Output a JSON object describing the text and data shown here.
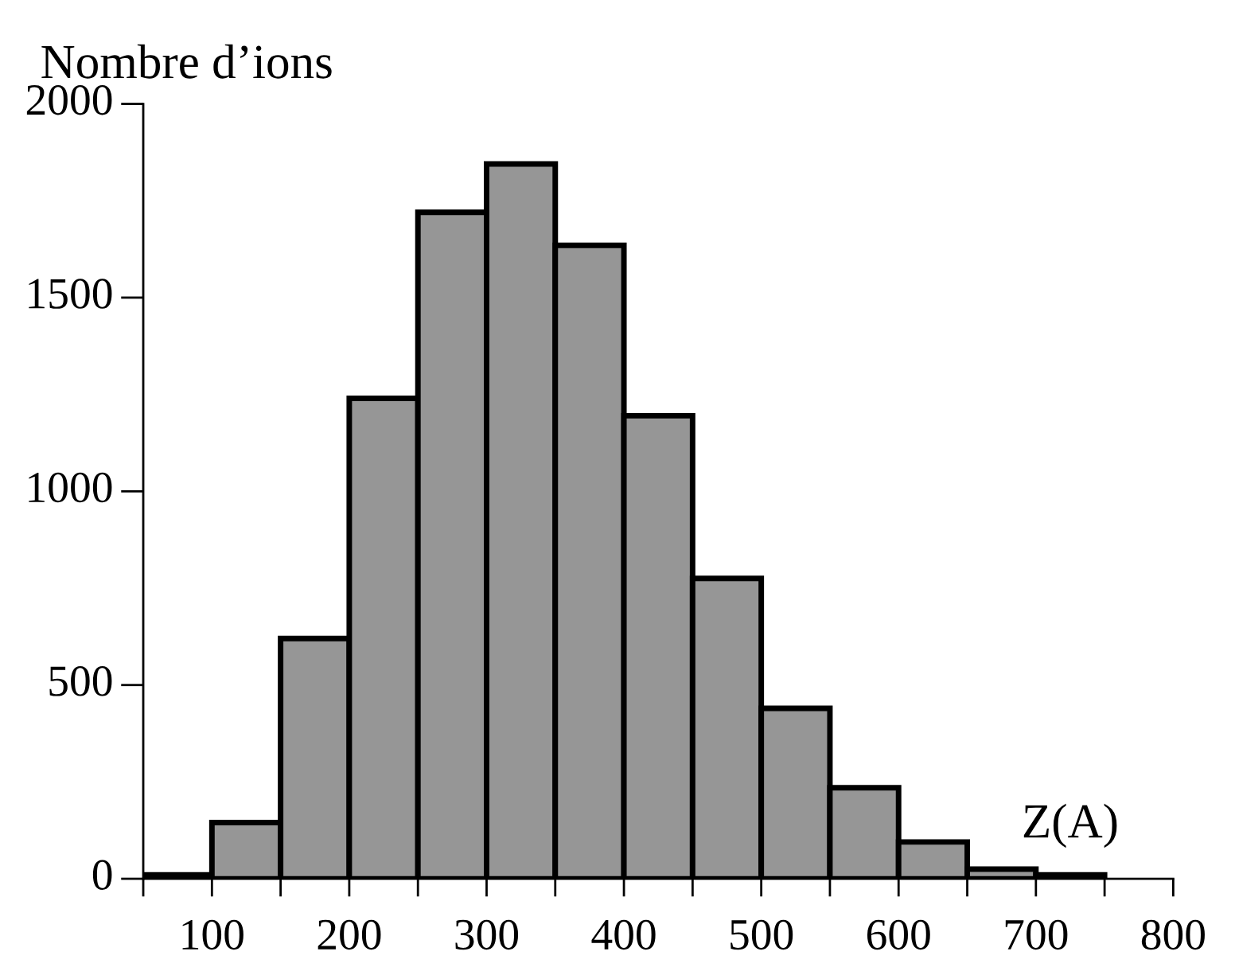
{
  "chart_data": {
    "type": "histogram",
    "ylabel": "Nombre d’ions",
    "xlabel": "Z(A)",
    "bins": [
      50,
      100,
      150,
      200,
      250,
      300,
      350,
      400,
      450,
      500,
      550,
      600,
      650,
      700,
      750
    ],
    "values": [
      10,
      145,
      620,
      1240,
      1720,
      1845,
      1635,
      1195,
      775,
      440,
      235,
      95,
      25,
      10
    ],
    "color": "#969696",
    "xlim": [
      50,
      800
    ],
    "xticks": [
      {
        "value": 50,
        "label": null
      },
      100,
      {
        "value": 150,
        "label": null
      },
      200,
      {
        "value": 250,
        "label": null
      },
      300,
      {
        "value": 350,
        "label": null
      },
      400,
      {
        "value": 450,
        "label": null
      },
      500,
      {
        "value": 550,
        "label": null
      },
      600,
      {
        "value": 650,
        "label": null
      },
      700,
      {
        "value": 750,
        "label": null
      },
      800
    ],
    "ylim": [
      0,
      2000
    ],
    "yticks": [
      0,
      500,
      1000,
      1500,
      2000
    ],
    "grid": false
  }
}
